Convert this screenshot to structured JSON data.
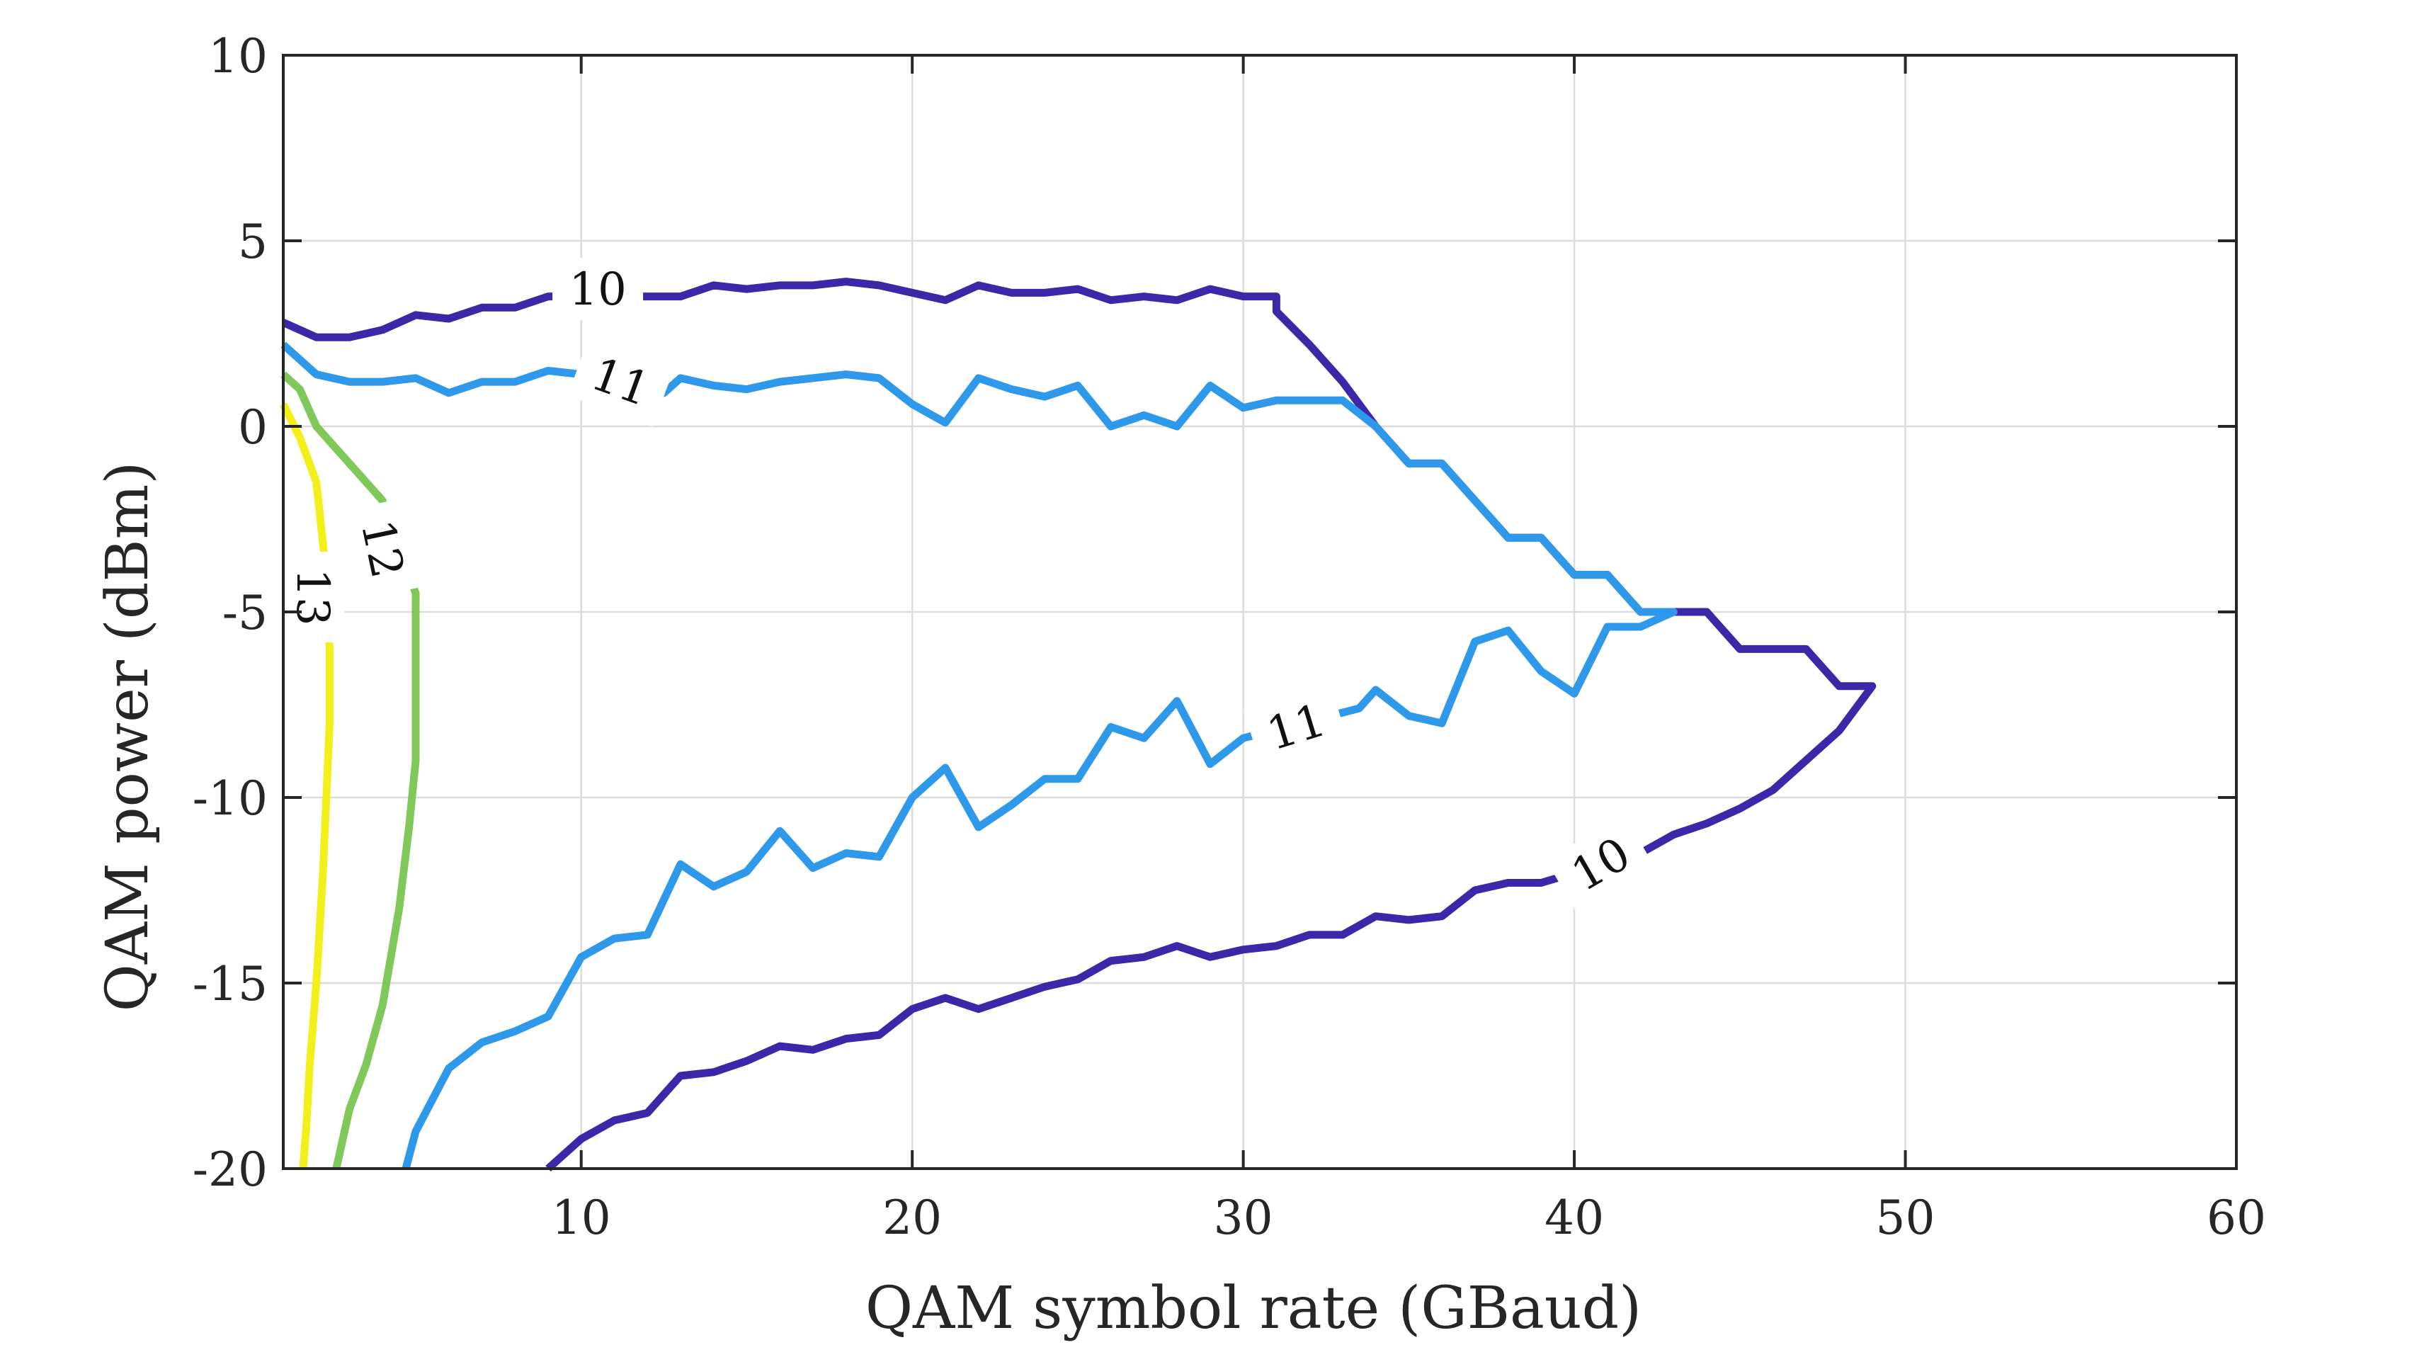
{
  "chart_data": {
    "type": "line",
    "subtype": "contour",
    "title": "",
    "xlabel": "QAM symbol rate (GBaud)",
    "ylabel": "QAM power (dBm)",
    "xlim": [
      1,
      60
    ],
    "ylim": [
      -20,
      10
    ],
    "xticks": [
      10,
      20,
      30,
      40,
      50,
      60
    ],
    "yticks": [
      10,
      5,
      0,
      -5,
      -10,
      -15,
      -20
    ],
    "xtick_labels": [
      "10",
      "20",
      "30",
      "40",
      "50",
      "60"
    ],
    "ytick_labels": [
      "10",
      "5",
      "0",
      "-5",
      "-10",
      "-15",
      "-20"
    ],
    "grid": true,
    "series": [
      {
        "level": 10,
        "color": "#3e26a8",
        "points": [
          [
            1,
            2.8
          ],
          [
            2,
            2.4
          ],
          [
            3,
            2.4
          ],
          [
            4,
            2.6
          ],
          [
            5,
            3.0
          ],
          [
            6,
            2.9
          ],
          [
            7,
            3.2
          ],
          [
            8,
            3.2
          ],
          [
            9,
            3.5
          ],
          [
            13,
            3.5
          ],
          [
            14,
            3.8
          ],
          [
            15,
            3.7
          ],
          [
            16,
            3.8
          ],
          [
            17,
            3.8
          ],
          [
            18,
            3.9
          ],
          [
            19,
            3.8
          ],
          [
            20,
            3.6
          ],
          [
            21,
            3.4
          ],
          [
            22,
            3.8
          ],
          [
            23,
            3.6
          ],
          [
            24,
            3.6
          ],
          [
            25,
            3.7
          ],
          [
            26,
            3.4
          ],
          [
            27,
            3.5
          ],
          [
            28,
            3.4
          ],
          [
            29,
            3.7
          ],
          [
            30,
            3.5
          ],
          [
            31,
            3.5
          ],
          [
            31,
            3.1
          ],
          [
            32,
            2.2
          ],
          [
            33,
            1.2
          ],
          [
            34,
            0.0
          ],
          [
            35,
            -1.0
          ],
          [
            36,
            -1.0
          ],
          [
            37,
            -2.0
          ],
          [
            38,
            -3.0
          ],
          [
            39,
            -3.0
          ],
          [
            40,
            -4.0
          ],
          [
            41,
            -4.0
          ],
          [
            42,
            -5.0
          ],
          [
            43,
            -5.0
          ],
          [
            44,
            -5.0
          ],
          [
            45,
            -6.0
          ],
          [
            46,
            -6.0
          ],
          [
            47,
            -6.0
          ],
          [
            48,
            -7.0
          ],
          [
            49,
            -7.0
          ],
          [
            48,
            -8.2
          ],
          [
            47,
            -9.0
          ],
          [
            46,
            -9.8
          ],
          [
            45,
            -10.3
          ],
          [
            44,
            -10.7
          ],
          [
            43,
            -11.0
          ],
          [
            42,
            -11.5
          ],
          [
            39,
            -12.3
          ],
          [
            38,
            -12.3
          ],
          [
            37,
            -12.5
          ],
          [
            36,
            -13.2
          ],
          [
            35,
            -13.3
          ],
          [
            34,
            -13.2
          ],
          [
            33,
            -13.7
          ],
          [
            32,
            -13.7
          ],
          [
            31,
            -14.0
          ],
          [
            30,
            -14.1
          ],
          [
            29,
            -14.3
          ],
          [
            28,
            -14.0
          ],
          [
            27,
            -14.3
          ],
          [
            26,
            -14.4
          ],
          [
            25,
            -14.9
          ],
          [
            24,
            -15.1
          ],
          [
            23,
            -15.4
          ],
          [
            22,
            -15.7
          ],
          [
            21,
            -15.4
          ],
          [
            20,
            -15.7
          ],
          [
            19,
            -16.4
          ],
          [
            18,
            -16.5
          ],
          [
            17,
            -16.8
          ],
          [
            16,
            -16.7
          ],
          [
            15,
            -17.1
          ],
          [
            14,
            -17.4
          ],
          [
            13,
            -17.5
          ],
          [
            12,
            -18.5
          ],
          [
            11,
            -18.7
          ],
          [
            10,
            -19.2
          ],
          [
            9,
            -20.0
          ]
        ]
      },
      {
        "level": 11,
        "color": "#2e98ea",
        "points": [
          [
            1,
            2.2
          ],
          [
            2,
            1.4
          ],
          [
            3,
            1.2
          ],
          [
            4,
            1.2
          ],
          [
            5,
            1.3
          ],
          [
            6,
            0.9
          ],
          [
            7,
            1.2
          ],
          [
            8,
            1.2
          ],
          [
            9,
            1.5
          ],
          [
            10,
            1.4
          ],
          [
            12.5,
            0.9
          ],
          [
            13,
            1.3
          ],
          [
            14,
            1.1
          ],
          [
            15,
            1.0
          ],
          [
            16,
            1.2
          ],
          [
            17,
            1.3
          ],
          [
            18,
            1.4
          ],
          [
            19,
            1.3
          ],
          [
            20,
            0.6
          ],
          [
            21,
            0.1
          ],
          [
            22,
            1.3
          ],
          [
            23,
            1.0
          ],
          [
            24,
            0.8
          ],
          [
            25,
            1.1
          ],
          [
            26,
            0.0
          ],
          [
            27,
            0.3
          ],
          [
            28,
            0.0
          ],
          [
            29,
            1.1
          ],
          [
            30,
            0.5
          ],
          [
            31,
            0.7
          ],
          [
            32,
            0.7
          ],
          [
            33,
            0.7
          ],
          [
            34,
            0.0
          ],
          [
            35,
            -1.0
          ],
          [
            36,
            -1.0
          ],
          [
            37,
            -2.0
          ],
          [
            38,
            -3.0
          ],
          [
            39,
            -3.0
          ],
          [
            40,
            -4.0
          ],
          [
            41,
            -4.0
          ],
          [
            42,
            -5.0
          ],
          [
            43,
            -5.0
          ],
          [
            42,
            -5.4
          ],
          [
            41,
            -5.4
          ],
          [
            40,
            -7.2
          ],
          [
            39,
            -6.6
          ],
          [
            38,
            -5.5
          ],
          [
            37,
            -5.8
          ],
          [
            36,
            -8.0
          ],
          [
            35,
            -7.8
          ],
          [
            34,
            -7.1
          ],
          [
            33.5,
            -7.6
          ],
          [
            30,
            -8.4
          ],
          [
            29,
            -9.1
          ],
          [
            28,
            -7.4
          ],
          [
            27,
            -8.4
          ],
          [
            26,
            -8.1
          ],
          [
            25,
            -9.5
          ],
          [
            24,
            -9.5
          ],
          [
            23,
            -10.2
          ],
          [
            22,
            -10.8
          ],
          [
            21,
            -9.2
          ],
          [
            20,
            -10.0
          ],
          [
            19,
            -11.6
          ],
          [
            18,
            -11.5
          ],
          [
            17,
            -11.9
          ],
          [
            16,
            -10.9
          ],
          [
            15,
            -12.0
          ],
          [
            14,
            -12.4
          ],
          [
            13,
            -11.8
          ],
          [
            12,
            -13.7
          ],
          [
            11,
            -13.8
          ],
          [
            10,
            -14.3
          ],
          [
            9,
            -15.9
          ],
          [
            8,
            -16.3
          ],
          [
            7,
            -16.6
          ],
          [
            6,
            -17.3
          ],
          [
            5,
            -19.0
          ],
          [
            4.7,
            -20.0
          ]
        ]
      },
      {
        "level": 12,
        "color": "#80c85a",
        "points": [
          [
            1,
            1.4
          ],
          [
            1.5,
            1.0
          ],
          [
            2,
            0.0
          ],
          [
            3,
            -1.0
          ],
          [
            4,
            -2.0
          ],
          [
            5,
            -4.5
          ],
          [
            5,
            -7.0
          ],
          [
            5,
            -9.0
          ],
          [
            4.8,
            -10.8
          ],
          [
            4.5,
            -13.0
          ],
          [
            4,
            -15.6
          ],
          [
            3.5,
            -17.2
          ],
          [
            3,
            -18.4
          ],
          [
            2.6,
            -20.0
          ]
        ]
      },
      {
        "level": 13,
        "color": "#f3ef1a",
        "points": [
          [
            1,
            0.6
          ],
          [
            1.5,
            -0.3
          ],
          [
            2,
            -1.5
          ],
          [
            2.3,
            -4.0
          ],
          [
            2.4,
            -6.0
          ],
          [
            2.4,
            -8.0
          ],
          [
            2.3,
            -10.0
          ],
          [
            2.2,
            -12.0
          ],
          [
            2.0,
            -15.0
          ],
          [
            1.8,
            -17.2
          ],
          [
            1.7,
            -18.8
          ],
          [
            1.6,
            -20.0
          ]
        ]
      }
    ],
    "contour_labels": [
      {
        "text": "10",
        "x": 10.5,
        "y": 3.7,
        "angle": 0,
        "series": 0
      },
      {
        "text": "11",
        "x": 11.2,
        "y": 1.2,
        "angle": 20,
        "series": 1
      },
      {
        "text": "12",
        "x": 4.0,
        "y": -3.3,
        "angle": 78,
        "series": 2
      },
      {
        "text": "13",
        "x": 1.9,
        "y": -4.6,
        "angle": 90,
        "series": 3
      },
      {
        "text": "11",
        "x": 31.6,
        "y": -8.1,
        "angle": -17,
        "series": 1
      },
      {
        "text": "10",
        "x": 40.8,
        "y": -11.8,
        "angle": -30,
        "series": 0
      }
    ]
  }
}
